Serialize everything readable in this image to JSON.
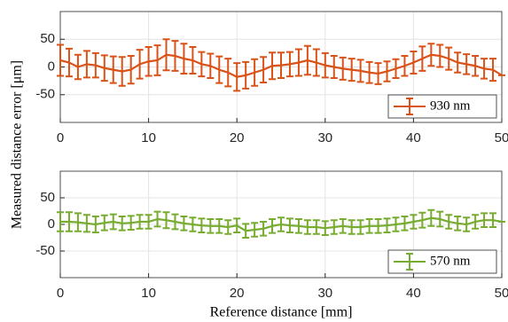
{
  "chart_data": [
    {
      "type": "errorbar",
      "ylabel": "Measured distance error [μm]",
      "x": [
        0,
        1,
        2,
        3,
        4,
        5,
        6,
        7,
        8,
        9,
        10,
        11,
        12,
        13,
        14,
        15,
        16,
        17,
        18,
        19,
        20,
        21,
        22,
        23,
        24,
        25,
        26,
        27,
        28,
        29,
        30,
        31,
        32,
        33,
        34,
        35,
        36,
        37,
        38,
        39,
        40,
        41,
        42,
        43,
        44,
        45,
        46,
        47,
        48,
        49,
        50
      ],
      "series": [
        {
          "name": "930 nm",
          "color": "#d95319",
          "values": [
            12,
            8,
            0,
            5,
            3,
            -2,
            -5,
            -8,
            -5,
            5,
            10,
            12,
            22,
            20,
            15,
            12,
            5,
            2,
            -5,
            -10,
            -18,
            -15,
            -10,
            -5,
            2,
            3,
            5,
            8,
            12,
            8,
            3,
            0,
            -3,
            -5,
            -7,
            -10,
            -12,
            -8,
            -3,
            2,
            8,
            15,
            22,
            20,
            15,
            8,
            5,
            2,
            -3,
            -5,
            -15
          ],
          "errors": [
            28,
            25,
            22,
            24,
            22,
            23,
            24,
            26,
            25,
            26,
            26,
            27,
            28,
            27,
            27,
            24,
            22,
            22,
            24,
            25,
            25,
            24,
            24,
            23,
            24,
            23,
            22,
            24,
            26,
            24,
            22,
            20,
            20,
            20,
            20,
            19,
            19,
            18,
            17,
            18,
            20,
            22,
            20,
            20,
            20,
            18,
            18,
            18,
            18,
            20,
            0
          ]
        }
      ],
      "xlim": [
        0,
        50
      ],
      "xticks": [
        0,
        10,
        20,
        30,
        40,
        50
      ],
      "ylim": [
        -100,
        100
      ],
      "yticks": [
        -50,
        0,
        50
      ],
      "grid": true,
      "legend": "lower right"
    },
    {
      "type": "errorbar",
      "xlabel": "Reference distance [mm]",
      "x": [
        0,
        1,
        2,
        3,
        4,
        5,
        6,
        7,
        8,
        9,
        10,
        11,
        12,
        13,
        14,
        15,
        16,
        17,
        18,
        19,
        20,
        21,
        22,
        23,
        24,
        25,
        26,
        27,
        28,
        29,
        30,
        31,
        32,
        33,
        34,
        35,
        36,
        37,
        38,
        39,
        40,
        41,
        42,
        43,
        44,
        45,
        46,
        47,
        48,
        49,
        50
      ],
      "series": [
        {
          "name": "570 nm",
          "color": "#77ac30",
          "values": [
            5,
            5,
            4,
            2,
            0,
            3,
            5,
            2,
            3,
            5,
            5,
            10,
            8,
            5,
            2,
            0,
            -2,
            -3,
            -3,
            -5,
            -2,
            -12,
            -10,
            -8,
            -3,
            0,
            -2,
            -3,
            -5,
            -5,
            -7,
            -5,
            -3,
            -5,
            -5,
            -3,
            -3,
            -2,
            0,
            2,
            5,
            8,
            12,
            10,
            5,
            2,
            0,
            5,
            8,
            8,
            5
          ],
          "errors": [
            18,
            18,
            17,
            16,
            15,
            14,
            14,
            13,
            13,
            13,
            13,
            14,
            15,
            14,
            13,
            13,
            13,
            13,
            13,
            13,
            13,
            13,
            13,
            13,
            13,
            13,
            13,
            13,
            13,
            13,
            13,
            13,
            13,
            13,
            13,
            13,
            13,
            13,
            13,
            13,
            13,
            14,
            15,
            14,
            13,
            13,
            13,
            13,
            13,
            13,
            0
          ]
        }
      ],
      "xlim": [
        0,
        50
      ],
      "xticks": [
        0,
        10,
        20,
        30,
        40,
        50
      ],
      "ylim": [
        -100,
        100
      ],
      "yticks": [
        -50,
        0,
        50
      ],
      "grid": true,
      "legend": "lower right"
    }
  ]
}
